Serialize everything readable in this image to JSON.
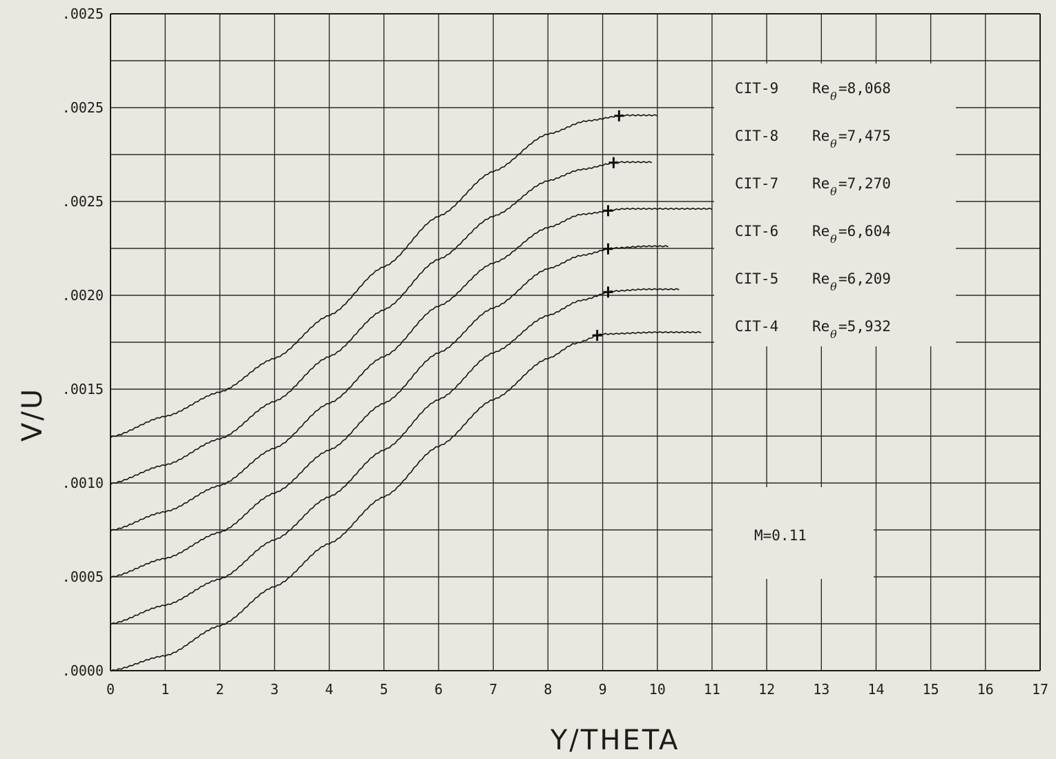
{
  "chart_data": {
    "type": "line",
    "xlabel": "Y/THETA",
    "ylabel": "V/U",
    "xlim": [
      0,
      17
    ],
    "x_ticks": [
      "0",
      "1",
      "2",
      "3",
      "4",
      "5",
      "6",
      "7",
      "8",
      "9",
      "10",
      "11",
      "12",
      "13",
      "14",
      "15",
      "16",
      "17"
    ],
    "y_ticks": [
      ".0000",
      ".0005",
      ".0010",
      ".0015",
      ".0020",
      ".0025",
      ".0025",
      ".0025",
      ".0025",
      ".0025",
      ".0025"
    ],
    "grid": true,
    "note": "M=0.11",
    "legend_position": "right",
    "series": [
      {
        "name": "CIT-4",
        "label_prefix": "CIT-4",
        "re": "=5,932",
        "points": [
          [
            0,
            0
          ],
          [
            1,
            8e-05
          ],
          [
            2,
            0.00024
          ],
          [
            3,
            0.00045
          ],
          [
            4,
            0.00068
          ],
          [
            5,
            0.00093
          ],
          [
            6,
            0.0012
          ],
          [
            7,
            0.00145
          ],
          [
            8,
            0.00167
          ],
          [
            8.5,
            0.00175
          ],
          [
            9,
            0.0018
          ],
          [
            10,
            0.00181
          ],
          [
            10.8,
            0.00181
          ]
        ],
        "mark_x": 8.9
      },
      {
        "name": "CIT-5",
        "label_prefix": "CIT-5",
        "re": "=6,209",
        "points": [
          [
            0,
            0.00025
          ],
          [
            1,
            0.00035
          ],
          [
            2,
            0.00049
          ],
          [
            3,
            0.0007
          ],
          [
            4,
            0.00093
          ],
          [
            5,
            0.00118
          ],
          [
            6,
            0.00145
          ],
          [
            7,
            0.0017
          ],
          [
            8,
            0.0019
          ],
          [
            8.6,
            0.00198
          ],
          [
            9.2,
            0.00203
          ],
          [
            9.8,
            0.00204
          ],
          [
            10.4,
            0.00204
          ]
        ],
        "mark_x": 9.1
      },
      {
        "name": "CIT-6",
        "label_prefix": "CIT-6",
        "re": "=6,604",
        "points": [
          [
            0,
            0.0005
          ],
          [
            1,
            0.0006
          ],
          [
            2,
            0.00074
          ],
          [
            3,
            0.00095
          ],
          [
            4,
            0.00118
          ],
          [
            5,
            0.00143
          ],
          [
            6,
            0.0017
          ],
          [
            7,
            0.00194
          ],
          [
            8,
            0.00215
          ],
          [
            8.6,
            0.00222
          ],
          [
            9.2,
            0.00226
          ],
          [
            9.8,
            0.00227
          ],
          [
            10.2,
            0.00227
          ]
        ],
        "mark_x": 9.1
      },
      {
        "name": "CIT-7",
        "label_prefix": "CIT-7",
        "re": "=7,270",
        "points": [
          [
            0,
            0.00075
          ],
          [
            1,
            0.00085
          ],
          [
            2,
            0.00099
          ],
          [
            3,
            0.00119
          ],
          [
            4,
            0.00143
          ],
          [
            5,
            0.00168
          ],
          [
            6,
            0.00195
          ],
          [
            7,
            0.00218
          ],
          [
            8,
            0.00237
          ],
          [
            8.6,
            0.00244
          ],
          [
            9.4,
            0.00247
          ],
          [
            10,
            0.00247
          ],
          [
            11,
            0.00247
          ]
        ],
        "mark_x": 9.1
      },
      {
        "name": "CIT-8",
        "label_prefix": "CIT-8",
        "re": "=7,475",
        "points": [
          [
            0,
            0.001
          ],
          [
            1,
            0.0011
          ],
          [
            2,
            0.00124
          ],
          [
            3,
            0.00144
          ],
          [
            4,
            0.00168
          ],
          [
            5,
            0.00193
          ],
          [
            6,
            0.0022
          ],
          [
            7,
            0.00243
          ],
          [
            8,
            0.00262
          ],
          [
            8.6,
            0.00268
          ],
          [
            9.3,
            0.00272
          ],
          [
            9.7,
            0.00272
          ],
          [
            9.9,
            0.00272
          ]
        ],
        "mark_x": 9.2
      },
      {
        "name": "CIT-9",
        "label_prefix": "CIT-9",
        "re": "=8,068",
        "points": [
          [
            0,
            0.00125
          ],
          [
            1,
            0.00136
          ],
          [
            2,
            0.00149
          ],
          [
            3,
            0.00167
          ],
          [
            4,
            0.0019
          ],
          [
            5,
            0.00216
          ],
          [
            6,
            0.00243
          ],
          [
            7,
            0.00267
          ],
          [
            8,
            0.00287
          ],
          [
            8.7,
            0.00294
          ],
          [
            9.4,
            0.00297
          ],
          [
            9.8,
            0.00297
          ],
          [
            10,
            0.00297
          ]
        ],
        "mark_x": 9.3
      }
    ]
  }
}
